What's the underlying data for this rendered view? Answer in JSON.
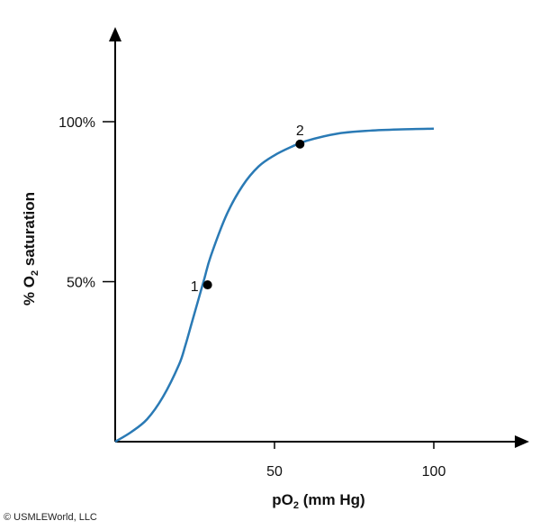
{
  "chart_data": {
    "type": "line",
    "xlabel": {
      "prefix": "pO",
      "sub": "2",
      "suffix": " (mm Hg)"
    },
    "ylabel": {
      "prefix": "% O",
      "sub": "2",
      "suffix": " saturation"
    },
    "x_ticks": [
      {
        "value": 50,
        "label": "50"
      },
      {
        "value": 100,
        "label": "100"
      }
    ],
    "y_ticks": [
      {
        "value": 50,
        "label": "50%"
      },
      {
        "value": 100,
        "label": "100%"
      }
    ],
    "xlim": [
      0,
      130
    ],
    "ylim": [
      0,
      130
    ],
    "series": [
      {
        "color": "#2a7ab5",
        "x": [
          0,
          5,
          10,
          15,
          20,
          22,
          24,
          26,
          28,
          30,
          35,
          40,
          45,
          50,
          55,
          60,
          70,
          80,
          90,
          100
        ],
        "y": [
          0,
          3,
          7,
          14,
          24,
          30,
          37,
          44,
          51,
          58,
          71,
          80,
          86,
          89.5,
          92,
          94,
          96.3,
          97.2,
          97.6,
          97.8
        ]
      }
    ],
    "points": [
      {
        "label": "1",
        "x": 29,
        "y": 49
      },
      {
        "label": "2",
        "x": 58,
        "y": 93
      }
    ]
  },
  "copyright": "© USMLEWorld, LLC"
}
